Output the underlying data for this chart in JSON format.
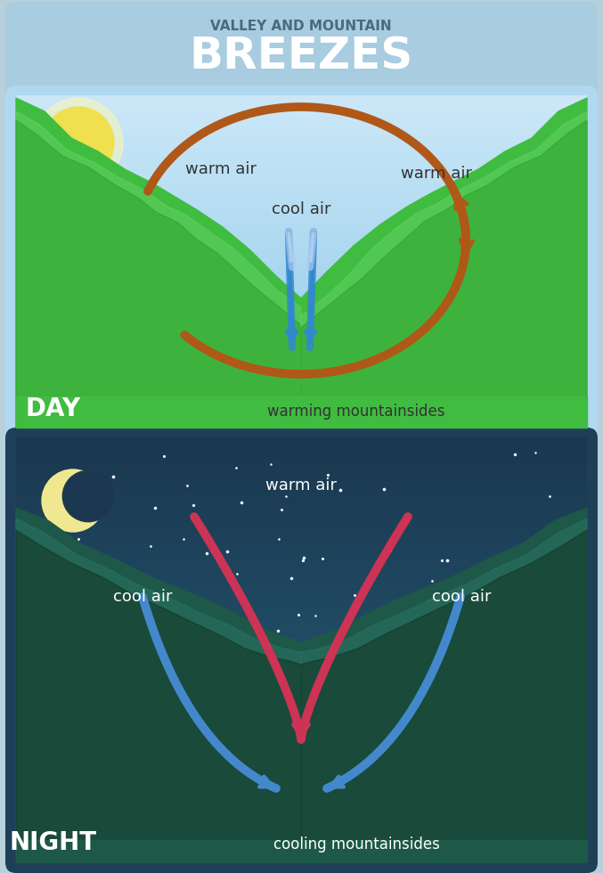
{
  "title_sub": "VALLEY AND MOUNTAIN",
  "title_main": "BREEZES",
  "title_sub_color": "#4a6a80",
  "title_main_color": "#ffffff",
  "outer_bg": "#b8d0dc",
  "day_sky_top": "#8cc8e0",
  "day_sky_bottom": "#d0ecf8",
  "day_ground_green": "#3cb83c",
  "day_ground_light": "#5ad05a",
  "day_ground_dark": "#28a028",
  "day_label": "DAY",
  "day_warm_color": "#b05818",
  "day_cool_color_top": "#aaccee",
  "day_cool_color_bot": "#3388cc",
  "day_warm_air_label": "warm air",
  "day_cool_air_label": "cool air",
  "day_bottom_label": "warming mountainsides",
  "night_sky_top": "#1c3a50",
  "night_sky_bottom": "#2a5870",
  "night_ground_dark": "#183830",
  "night_ground_mid": "#1e5048",
  "night_ground_light": "#266858",
  "night_label": "NIGHT",
  "night_warm_color_top": "#cc3355",
  "night_warm_color_bot": "#882233",
  "night_cool_color": "#4488cc",
  "night_warm_air_label": "warm air",
  "night_cool_air_left": "cool air",
  "night_cool_air_right": "cool air",
  "night_bottom_label": "cooling mountainsides",
  "text_dark": "#333333",
  "text_white": "#ffffff"
}
